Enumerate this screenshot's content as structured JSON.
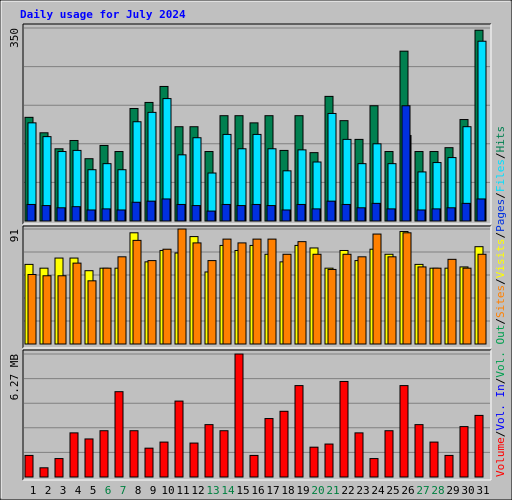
{
  "title": "Daily usage for July 2024",
  "legend_separator": "/",
  "extra_legend": [
    {
      "name": "Vol. In",
      "color": "#0000ff"
    },
    {
      "name": "Vol. Out",
      "color": "#00a050"
    }
  ],
  "highlight": [
    5,
    6,
    12,
    13,
    19,
    20,
    26,
    27
  ],
  "highlight_color": "#008040",
  "categories": [
    "1",
    "2",
    "3",
    "4",
    "5",
    "6",
    "7",
    "8",
    "9",
    "10",
    "11",
    "12",
    "13",
    "14",
    "15",
    "16",
    "17",
    "18",
    "19",
    "20",
    "21",
    "22",
    "23",
    "24",
    "25",
    "26",
    "27",
    "28",
    "29",
    "30",
    "31"
  ],
  "chart_data": [
    {
      "type": "bar",
      "ylim": [
        0,
        350
      ],
      "yticks": [
        350
      ],
      "grid": true,
      "series": [
        {
          "name": "Hits",
          "color": "#008050",
          "values": [
            188,
            160,
            131,
            146,
            113,
            137,
            126,
            204,
            215,
            244,
            171,
            171,
            126,
            191,
            191,
            178,
            191,
            128,
            191,
            124,
            226,
            182,
            148,
            209,
            126,
            308,
            126,
            126,
            133,
            184,
            346
          ]
        },
        {
          "name": "Files",
          "color": "#00e0ff",
          "values": [
            178,
            153,
            126,
            128,
            93,
            104,
            93,
            180,
            197,
            222,
            120,
            151,
            87,
            157,
            131,
            157,
            131,
            91,
            129,
            107,
            195,
            148,
            104,
            140,
            104,
            155,
            89,
            106,
            115,
            171,
            326
          ]
        },
        {
          "name": "Pages",
          "color": "#0030e0",
          "values": [
            30,
            28,
            24,
            26,
            20,
            22,
            20,
            34,
            36,
            40,
            30,
            28,
            18,
            30,
            28,
            30,
            28,
            20,
            30,
            22,
            36,
            30,
            24,
            32,
            22,
            209,
            20,
            22,
            24,
            32,
            40
          ]
        }
      ]
    },
    {
      "type": "bar",
      "ylim": [
        0,
        91
      ],
      "yticks": [
        91
      ],
      "grid": true,
      "series": [
        {
          "name": "Visits",
          "color": "#ffff00",
          "values": [
            63,
            60,
            68,
            68,
            58,
            60,
            60,
            88,
            65,
            74,
            72,
            85,
            57,
            78,
            74,
            78,
            71,
            65,
            78,
            76,
            60,
            74,
            66,
            75,
            71,
            89,
            63,
            60,
            60,
            61,
            77
          ]
        },
        {
          "name": "Sites",
          "color": "#ff8000",
          "values": [
            55,
            54,
            54,
            64,
            50,
            60,
            69,
            82,
            66,
            75,
            91,
            80,
            66,
            83,
            80,
            83,
            83,
            71,
            81,
            71,
            59,
            71,
            69,
            87,
            69,
            88,
            61,
            60,
            67,
            60,
            71
          ]
        }
      ]
    },
    {
      "type": "bar",
      "ylim": [
        0,
        6.27
      ],
      "yticks": [
        {
          "value": 6.27,
          "label": "6.27 MB"
        }
      ],
      "grid": true,
      "series": [
        {
          "name": "Volume",
          "color": "#ff0000",
          "values": [
            1.1,
            0.47,
            0.94,
            2.25,
            1.94,
            2.36,
            4.35,
            2.36,
            1.47,
            1.78,
            3.87,
            1.73,
            2.67,
            2.36,
            6.27,
            1.1,
            2.98,
            3.35,
            4.66,
            1.52,
            1.68,
            4.87,
            2.25,
            0.94,
            2.36,
            4.66,
            2.67,
            1.78,
            1.1,
            2.57,
            3.14
          ]
        }
      ]
    }
  ]
}
